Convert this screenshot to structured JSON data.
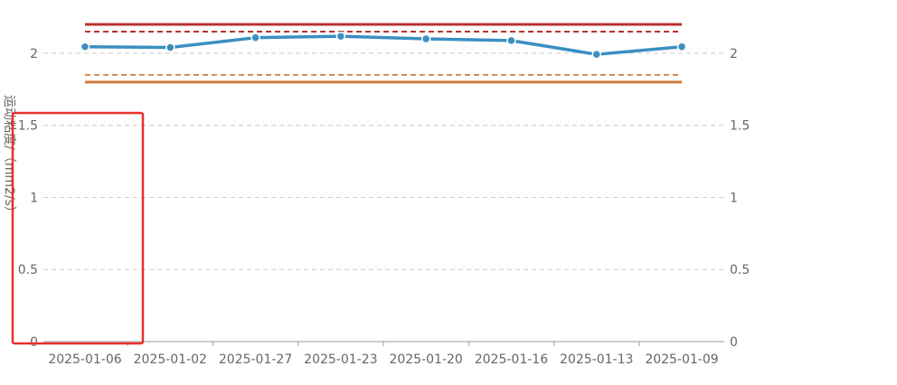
{
  "chart_data": {
    "type": "line",
    "title": "",
    "xlabel": "",
    "ylabel": "运动粘度/（mm2/s）",
    "categories": [
      "2025-01-06",
      "2025-01-02",
      "2025-01-27",
      "2025-01-23",
      "2025-01-20",
      "2025-01-16",
      "2025-01-13",
      "2025-01-09"
    ],
    "series": [
      {
        "values": [
          2.045,
          2.04,
          2.108,
          2.118,
          2.1,
          2.088,
          1.992,
          2.045
        ],
        "color": "#3b8fc1"
      }
    ],
    "reference_lines": [
      {
        "value": 2.2,
        "style": "solid",
        "color": "#b8312f"
      },
      {
        "value": 2.15,
        "style": "dashed",
        "color": "#b8312f"
      },
      {
        "value": 1.85,
        "style": "dashed",
        "color": "#d08a55"
      },
      {
        "value": 1.8,
        "style": "solid",
        "color": "#d07a3f"
      }
    ],
    "ylim": [
      0,
      2.2
    ],
    "yticks": [
      "0",
      "0.5",
      "1",
      "1.5",
      "2"
    ],
    "ytick_values": [
      0,
      0.5,
      1,
      1.5,
      2
    ],
    "grid": true,
    "legend": "none",
    "highlight_box_color": "#e8302a"
  }
}
